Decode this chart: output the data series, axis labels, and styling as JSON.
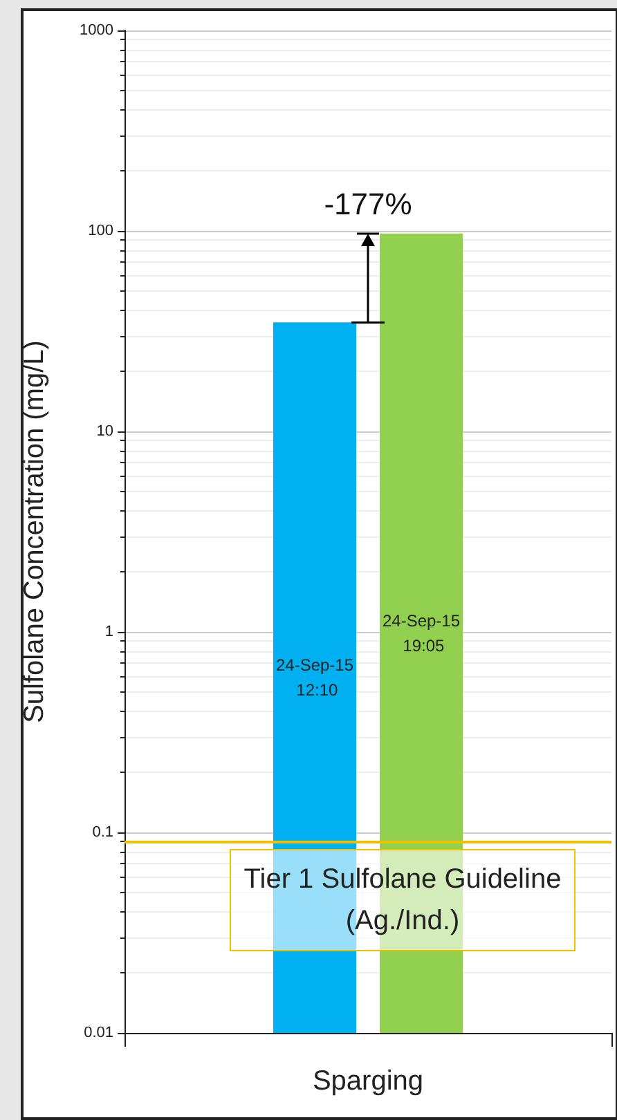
{
  "chart_data": {
    "type": "bar",
    "ylabel": "Sulfolane Concentration (mg/L)",
    "categories": [
      "Sparging"
    ],
    "series": [
      {
        "name": "24-Sep-15 12:10",
        "color": "#00b0f0",
        "values": [
          35
        ]
      },
      {
        "name": "24-Sep-15 19:05",
        "color": "#92d050",
        "values": [
          97
        ]
      }
    ],
    "log": "y",
    "ylim": [
      0.01,
      1000
    ],
    "yticks": [
      0.01,
      0.1,
      1,
      10,
      100,
      1000
    ],
    "grid": "y",
    "legend": false,
    "ref_lines": [
      {
        "axis": "y",
        "value": 0.09,
        "label": "Tier 1 Sulfolane Guideline  (Ag./Ind.)",
        "color": "#f0c000"
      }
    ],
    "annotations": [
      "-177%"
    ]
  }
}
